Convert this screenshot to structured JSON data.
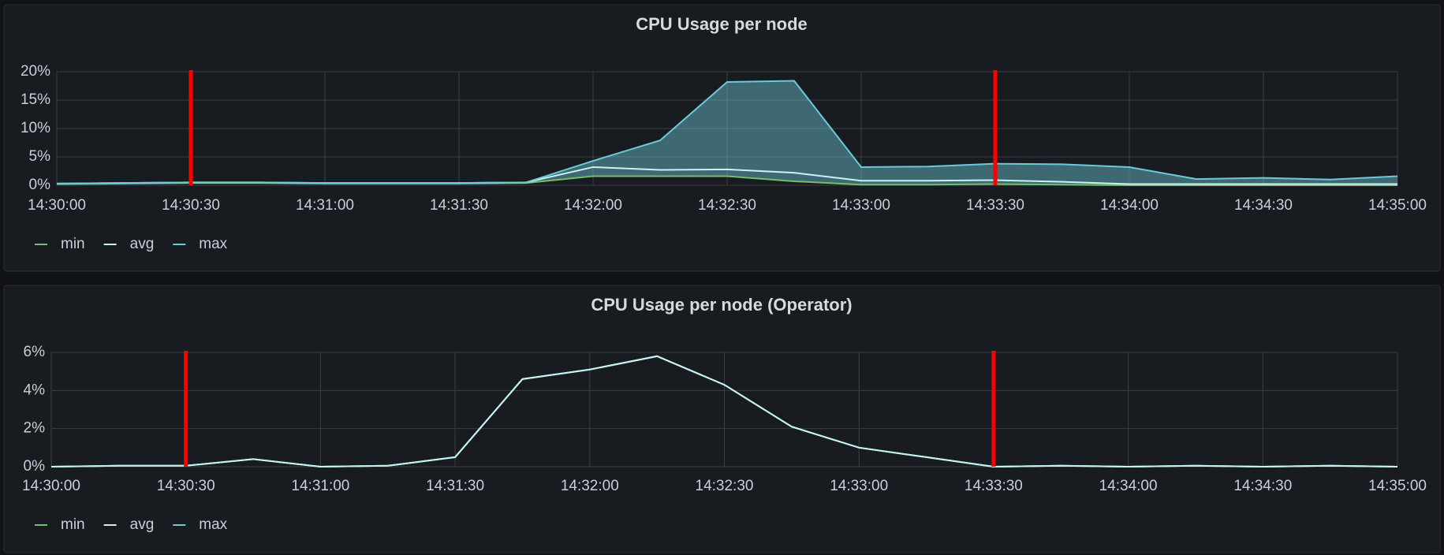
{
  "chart_data": [
    {
      "type": "line",
      "title": "CPU Usage per node",
      "fill_between": true,
      "grid": true,
      "x": [
        "14:30:00",
        "14:30:15",
        "14:30:30",
        "14:30:45",
        "14:31:00",
        "14:31:15",
        "14:31:30",
        "14:31:45",
        "14:32:00",
        "14:32:15",
        "14:32:30",
        "14:32:45",
        "14:33:00",
        "14:33:15",
        "14:33:30",
        "14:33:45",
        "14:34:00",
        "14:34:15",
        "14:34:30",
        "14:34:45",
        "14:35:00"
      ],
      "series": [
        {
          "name": "min",
          "color": "#73bf69",
          "values": [
            0.2,
            0.3,
            0.4,
            0.4,
            0.3,
            0.3,
            0.3,
            0.4,
            1.6,
            1.6,
            1.6,
            0.7,
            0.1,
            0.1,
            0.2,
            0.1,
            0.0,
            0.0,
            0.0,
            0.0,
            0.0
          ]
        },
        {
          "name": "avg",
          "color": "#c8f2f2",
          "values": [
            0.3,
            0.4,
            0.5,
            0.5,
            0.4,
            0.4,
            0.4,
            0.5,
            3.2,
            2.7,
            2.8,
            2.2,
            0.8,
            0.8,
            0.9,
            0.6,
            0.2,
            0.2,
            0.2,
            0.2,
            0.2
          ]
        },
        {
          "name": "max",
          "color": "#6ccad8",
          "values": [
            0.3,
            0.4,
            0.5,
            0.5,
            0.4,
            0.4,
            0.4,
            0.5,
            4.3,
            7.9,
            18.2,
            18.4,
            3.2,
            3.3,
            3.8,
            3.7,
            3.2,
            1.1,
            1.3,
            1.0,
            1.6
          ]
        }
      ],
      "xlim": [
        "14:30:00",
        "14:35:00"
      ],
      "xticks": [
        "14:30:00",
        "14:30:30",
        "14:31:00",
        "14:31:30",
        "14:32:00",
        "14:32:30",
        "14:33:00",
        "14:33:30",
        "14:34:00",
        "14:34:30",
        "14:35:00"
      ],
      "ylim": [
        0,
        20
      ],
      "yticks": [
        {
          "value": 0,
          "label": "0%"
        },
        {
          "value": 5,
          "label": "5%"
        },
        {
          "value": 10,
          "label": "10%"
        },
        {
          "value": 15,
          "label": "15%"
        },
        {
          "value": 20,
          "label": "20%"
        }
      ],
      "annotations": [
        {
          "x": "14:30:30",
          "color": "#ff0000"
        },
        {
          "x": "14:33:30",
          "color": "#ff0000"
        }
      ]
    },
    {
      "type": "line",
      "title": "CPU Usage per node (Operator)",
      "fill_between": false,
      "grid": true,
      "x": [
        "14:30:00",
        "14:30:15",
        "14:30:30",
        "14:30:45",
        "14:31:00",
        "14:31:15",
        "14:31:30",
        "14:31:45",
        "14:32:00",
        "14:32:15",
        "14:32:30",
        "14:32:45",
        "14:33:00",
        "14:33:15",
        "14:33:30",
        "14:33:45",
        "14:34:00",
        "14:34:15",
        "14:34:30",
        "14:34:45",
        "14:35:00"
      ],
      "series": [
        {
          "name": "min",
          "color": "#73bf69",
          "values": [
            0,
            0.05,
            0.05,
            0.4,
            0,
            0.05,
            0.5,
            4.6,
            5.1,
            5.8,
            4.3,
            2.1,
            1.0,
            0.5,
            0,
            0.05,
            0,
            0.05,
            0,
            0.05,
            0
          ]
        },
        {
          "name": "max",
          "color": "#6ccad8",
          "values": [
            0,
            0.05,
            0.05,
            0.4,
            0,
            0.05,
            0.5,
            4.6,
            5.1,
            5.8,
            4.3,
            2.1,
            1.0,
            0.5,
            0,
            0.05,
            0,
            0.05,
            0,
            0.05,
            0
          ]
        },
        {
          "name": "avg",
          "color": "#c8f2f2",
          "values": [
            0,
            0.05,
            0.05,
            0.4,
            0,
            0.05,
            0.5,
            4.6,
            5.1,
            5.8,
            4.3,
            2.1,
            1.0,
            0.5,
            0,
            0.05,
            0,
            0.05,
            0,
            0.05,
            0
          ]
        }
      ],
      "legend_order": [
        0,
        2,
        1
      ],
      "xlim": [
        "14:30:00",
        "14:35:00"
      ],
      "xticks": [
        "14:30:00",
        "14:30:30",
        "14:31:00",
        "14:31:30",
        "14:32:00",
        "14:32:30",
        "14:33:00",
        "14:33:30",
        "14:34:00",
        "14:34:30",
        "14:35:00"
      ],
      "ylim": [
        0,
        6
      ],
      "yticks": [
        {
          "value": 0,
          "label": "0%"
        },
        {
          "value": 2,
          "label": "2%"
        },
        {
          "value": 4,
          "label": "4%"
        },
        {
          "value": 6,
          "label": "6%"
        }
      ],
      "annotations": [
        {
          "x": "14:30:30",
          "color": "#ff0000"
        },
        {
          "x": "14:33:30",
          "color": "#ff0000"
        }
      ]
    }
  ]
}
